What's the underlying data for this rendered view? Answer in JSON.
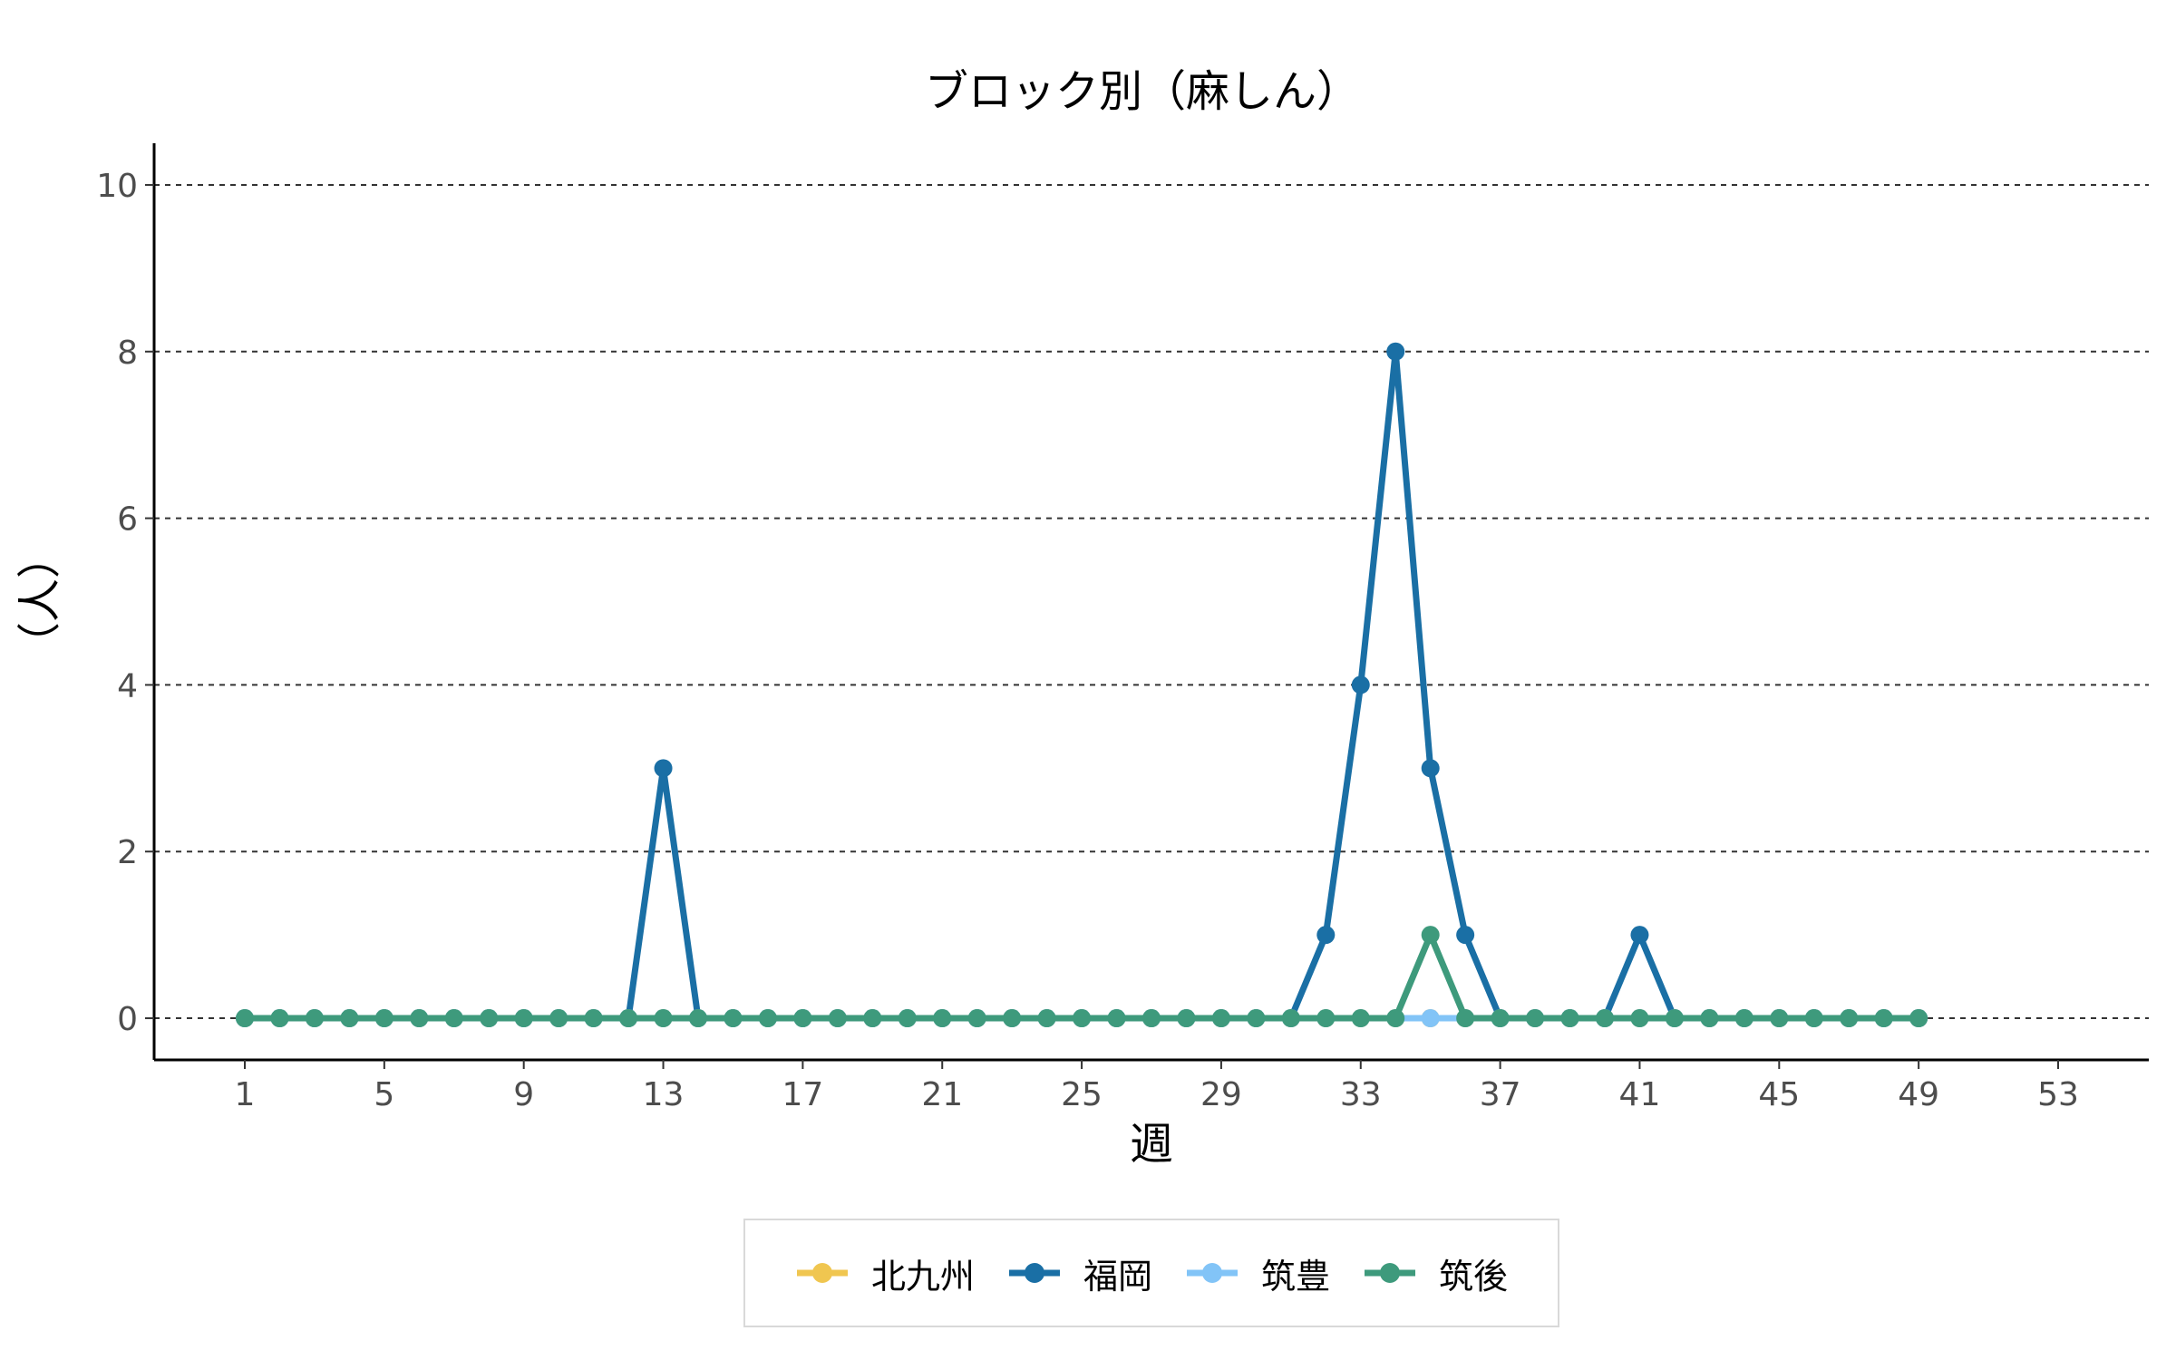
{
  "chart_data": {
    "type": "line",
    "title": "ブロック別（麻しん）",
    "xlabel": "週",
    "ylabel": "（人）",
    "xlim": [
      -1.6,
      55.6
    ],
    "ylim": [
      -0.5,
      10.5
    ],
    "xticks": [
      1,
      5,
      9,
      13,
      17,
      21,
      25,
      29,
      33,
      37,
      41,
      45,
      49,
      53
    ],
    "yticks": [
      0,
      2,
      4,
      6,
      8,
      10
    ],
    "grid": "horizontal-dashed",
    "legend_position": "bottom",
    "x": [
      1,
      2,
      3,
      4,
      5,
      6,
      7,
      8,
      9,
      10,
      11,
      12,
      13,
      14,
      15,
      16,
      17,
      18,
      19,
      20,
      21,
      22,
      23,
      24,
      25,
      26,
      27,
      28,
      29,
      30,
      31,
      32,
      33,
      34,
      35,
      36,
      37,
      38,
      39,
      40,
      41,
      42,
      43,
      44,
      45,
      46,
      47,
      48,
      49
    ],
    "series": [
      {
        "name": "北九州",
        "color": "#f0c650",
        "values": [
          0,
          0,
          0,
          0,
          0,
          0,
          0,
          0,
          0,
          0,
          0,
          0,
          0,
          0,
          0,
          0,
          0,
          0,
          0,
          0,
          0,
          0,
          0,
          0,
          0,
          0,
          0,
          0,
          0,
          0,
          0,
          0,
          0,
          0,
          0,
          0,
          0,
          0,
          0,
          0,
          0,
          0,
          0,
          0,
          0,
          0,
          0,
          0,
          0
        ]
      },
      {
        "name": "福岡",
        "color": "#1a6fa5",
        "values": [
          0,
          0,
          0,
          0,
          0,
          0,
          0,
          0,
          0,
          0,
          0,
          0,
          3,
          0,
          0,
          0,
          0,
          0,
          0,
          0,
          0,
          0,
          0,
          0,
          0,
          0,
          0,
          0,
          0,
          0,
          0,
          1,
          4,
          8,
          3,
          1,
          0,
          0,
          0,
          0,
          1,
          0,
          0,
          0,
          0,
          0,
          0,
          0,
          0
        ]
      },
      {
        "name": "筑豊",
        "color": "#82c4f7",
        "values": [
          0,
          0,
          0,
          0,
          0,
          0,
          0,
          0,
          0,
          0,
          0,
          0,
          0,
          0,
          0,
          0,
          0,
          0,
          0,
          0,
          0,
          0,
          0,
          0,
          0,
          0,
          0,
          0,
          0,
          0,
          0,
          0,
          0,
          0,
          0,
          0,
          0,
          0,
          0,
          0,
          0,
          0,
          0,
          0,
          0,
          0,
          0,
          0,
          0
        ]
      },
      {
        "name": "筑後",
        "color": "#3e9a7c",
        "values": [
          0,
          0,
          0,
          0,
          0,
          0,
          0,
          0,
          0,
          0,
          0,
          0,
          0,
          0,
          0,
          0,
          0,
          0,
          0,
          0,
          0,
          0,
          0,
          0,
          0,
          0,
          0,
          0,
          0,
          0,
          0,
          0,
          0,
          0,
          1,
          0,
          0,
          0,
          0,
          0,
          0,
          0,
          0,
          0,
          0,
          0,
          0,
          0,
          0
        ]
      }
    ]
  }
}
